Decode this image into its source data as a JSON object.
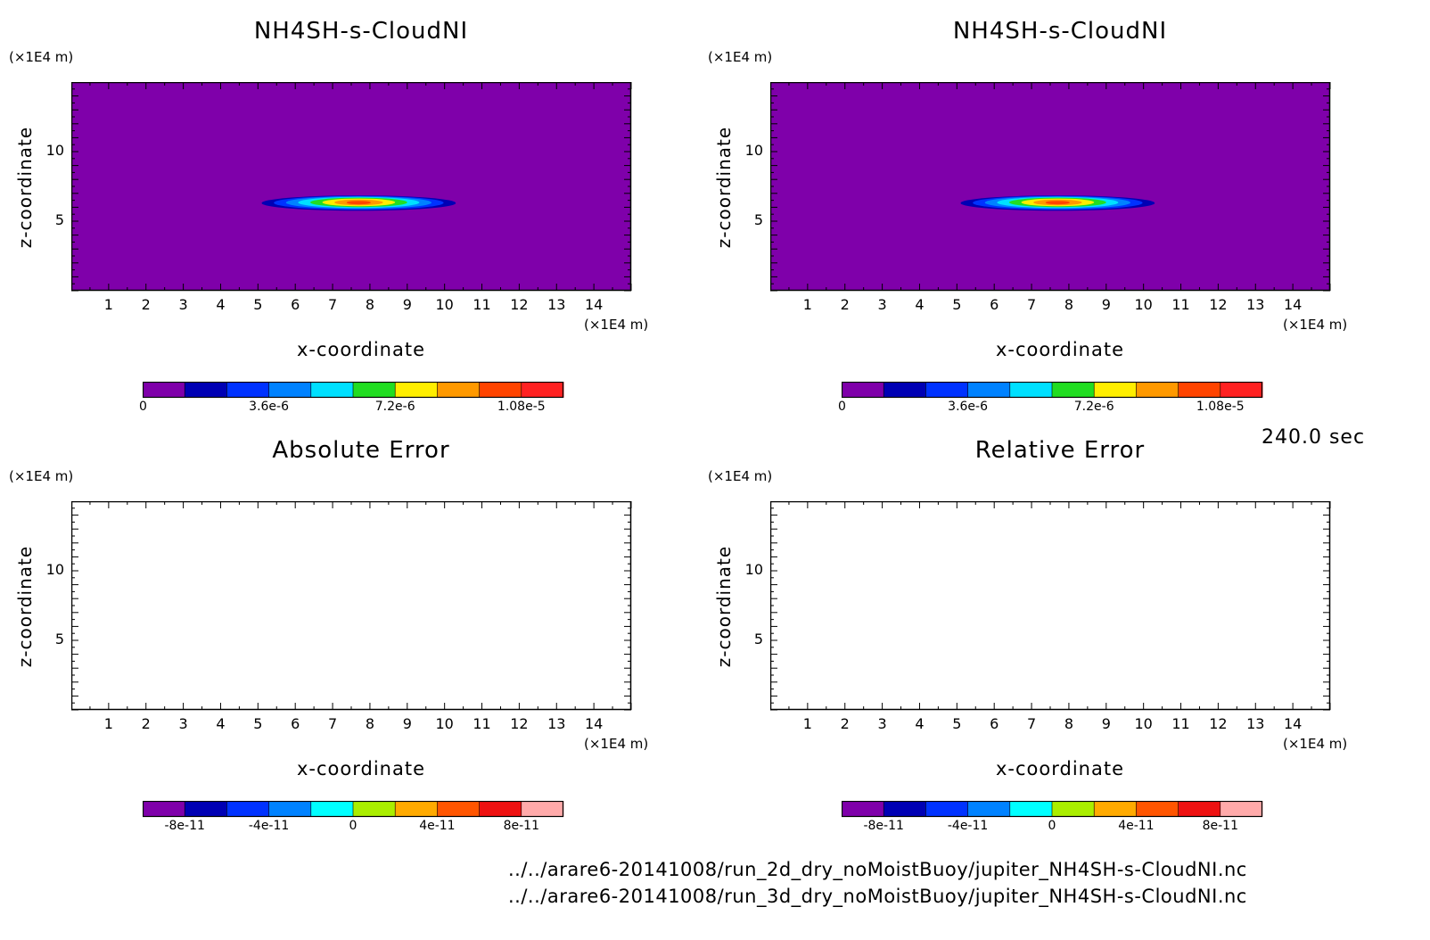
{
  "time_label": "240.0 sec",
  "files": [
    "../../arare6-20141008/run_2d_dry_noMoistBuoy/jupiter_NH4SH-s-CloudNI.nc",
    "../../arare6-20141008/run_3d_dry_noMoistBuoy/jupiter_NH4SH-s-CloudNI.nc"
  ],
  "chart_data": [
    {
      "type": "heatmap",
      "title": "NH4SH-s-CloudNI",
      "xlabel": "x-coordinate",
      "ylabel": "z-coordinate",
      "x_unit": "(×1E4 m)",
      "z_unit": "(×1E4 m)",
      "xlim": [
        0,
        15
      ],
      "zlim": [
        0,
        15
      ],
      "xticks": [
        1,
        2,
        3,
        4,
        5,
        6,
        7,
        8,
        9,
        10,
        11,
        12,
        13,
        14
      ],
      "zticks": [
        5,
        10
      ],
      "background": "#7f00aa",
      "colorbar": {
        "colors": [
          "#7f00aa",
          "#0000b4",
          "#0032ff",
          "#0082ff",
          "#00e0ff",
          "#22dd22",
          "#ffee00",
          "#ff9900",
          "#ff4400",
          "#ff2222"
        ],
        "tick_labels": [
          "0",
          "3.6e-6",
          "7.2e-6",
          "1.08e-5"
        ]
      },
      "cloud": {
        "x_center": 7.7,
        "z_center": 6.3,
        "x_half_width": 2.6,
        "z_half_height": 0.55
      }
    },
    {
      "type": "heatmap",
      "title": "NH4SH-s-CloudNI",
      "xlabel": "x-coordinate",
      "ylabel": "z-coordinate",
      "x_unit": "(×1E4 m)",
      "z_unit": "(×1E4 m)",
      "xlim": [
        0,
        15
      ],
      "zlim": [
        0,
        15
      ],
      "xticks": [
        1,
        2,
        3,
        4,
        5,
        6,
        7,
        8,
        9,
        10,
        11,
        12,
        13,
        14
      ],
      "zticks": [
        5,
        10
      ],
      "background": "#7f00aa",
      "colorbar": {
        "colors": [
          "#7f00aa",
          "#0000b4",
          "#0032ff",
          "#0082ff",
          "#00e0ff",
          "#22dd22",
          "#ffee00",
          "#ff9900",
          "#ff4400",
          "#ff2222"
        ],
        "tick_labels": [
          "0",
          "3.6e-6",
          "7.2e-6",
          "1.08e-5"
        ]
      },
      "cloud": {
        "x_center": 7.7,
        "z_center": 6.3,
        "x_half_width": 2.6,
        "z_half_height": 0.55
      }
    },
    {
      "type": "heatmap",
      "title": "Absolute Error",
      "xlabel": "x-coordinate",
      "ylabel": "z-coordinate",
      "x_unit": "(×1E4 m)",
      "z_unit": "(×1E4 m)",
      "xlim": [
        0,
        15
      ],
      "zlim": [
        0,
        15
      ],
      "xticks": [
        1,
        2,
        3,
        4,
        5,
        6,
        7,
        8,
        9,
        10,
        11,
        12,
        13,
        14
      ],
      "zticks": [
        5,
        10
      ],
      "background": "#ffffff",
      "colorbar": {
        "colors": [
          "#7f00aa",
          "#0000b4",
          "#0032ff",
          "#0082ff",
          "#00ffff",
          "#aaee00",
          "#ffaa00",
          "#ff5500",
          "#ee1111",
          "#ffaaaa"
        ],
        "tick_labels": [
          "-8e-11",
          "-4e-11",
          "0",
          "4e-11",
          "8e-11"
        ]
      },
      "cloud": null
    },
    {
      "type": "heatmap",
      "title": "Relative Error",
      "xlabel": "x-coordinate",
      "ylabel": "z-coordinate",
      "x_unit": "(×1E4 m)",
      "z_unit": "(×1E4 m)",
      "xlim": [
        0,
        15
      ],
      "zlim": [
        0,
        15
      ],
      "xticks": [
        1,
        2,
        3,
        4,
        5,
        6,
        7,
        8,
        9,
        10,
        11,
        12,
        13,
        14
      ],
      "zticks": [
        5,
        10
      ],
      "background": "#ffffff",
      "colorbar": {
        "colors": [
          "#7f00aa",
          "#0000b4",
          "#0032ff",
          "#0082ff",
          "#00ffff",
          "#aaee00",
          "#ffaa00",
          "#ff5500",
          "#ee1111",
          "#ffaaaa"
        ],
        "tick_labels": [
          "-8e-11",
          "-4e-11",
          "0",
          "4e-11",
          "8e-11"
        ]
      },
      "cloud": null
    }
  ]
}
